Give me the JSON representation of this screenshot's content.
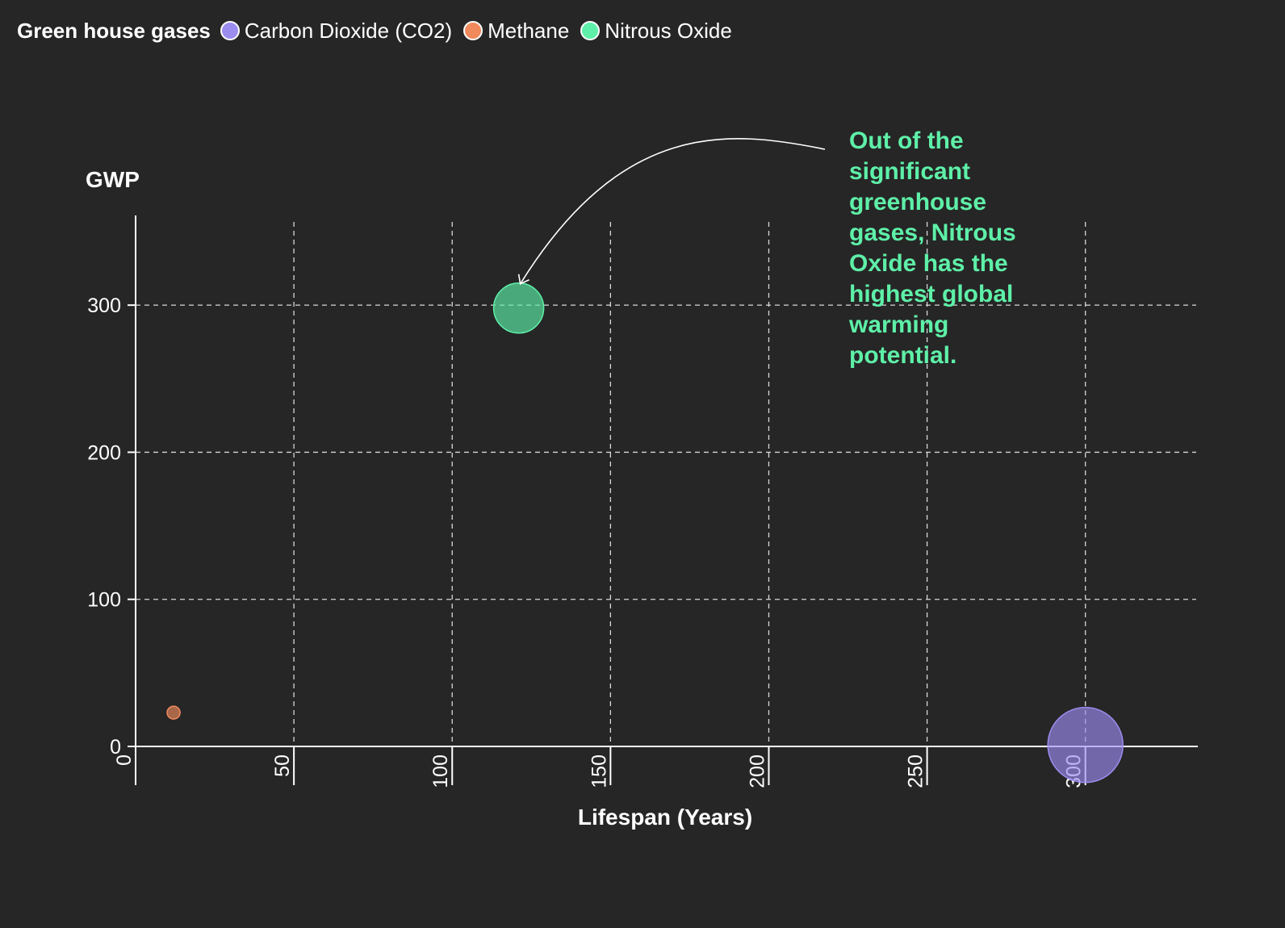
{
  "legend": {
    "title": "Green house gases",
    "items": [
      {
        "label": "Carbon Dioxide (CO2)",
        "color": "#9b8cf0"
      },
      {
        "label": "Methane",
        "color": "#f08a5d"
      },
      {
        "label": "Nitrous Oxide",
        "color": "#5ef0a8"
      }
    ]
  },
  "annotation": {
    "text": "Out of the significant greenhouse gases, Nitrous Oxide has the highest global warming potential.",
    "color": "#5ef0a8"
  },
  "chart_data": {
    "type": "scatter",
    "title": "",
    "xlabel": "Lifespan (Years)",
    "ylabel": "GWP",
    "xlim": [
      0,
      335
    ],
    "ylim": [
      0,
      350
    ],
    "x_ticks": [
      0,
      50,
      100,
      150,
      200,
      250,
      300
    ],
    "y_ticks": [
      0,
      100,
      200,
      300
    ],
    "grid": true,
    "legend_position": "top-left",
    "series": [
      {
        "name": "Carbon Dioxide (CO2)",
        "color": "#9b8cf0",
        "points": [
          {
            "x": 300,
            "y": 1,
            "size": 3
          }
        ]
      },
      {
        "name": "Methane",
        "color": "#f08a5d",
        "points": [
          {
            "x": 12,
            "y": 23,
            "size": 0.5
          }
        ]
      },
      {
        "name": "Nitrous Oxide",
        "color": "#5ef0a8",
        "points": [
          {
            "x": 121,
            "y": 298,
            "size": 2
          }
        ]
      }
    ]
  }
}
